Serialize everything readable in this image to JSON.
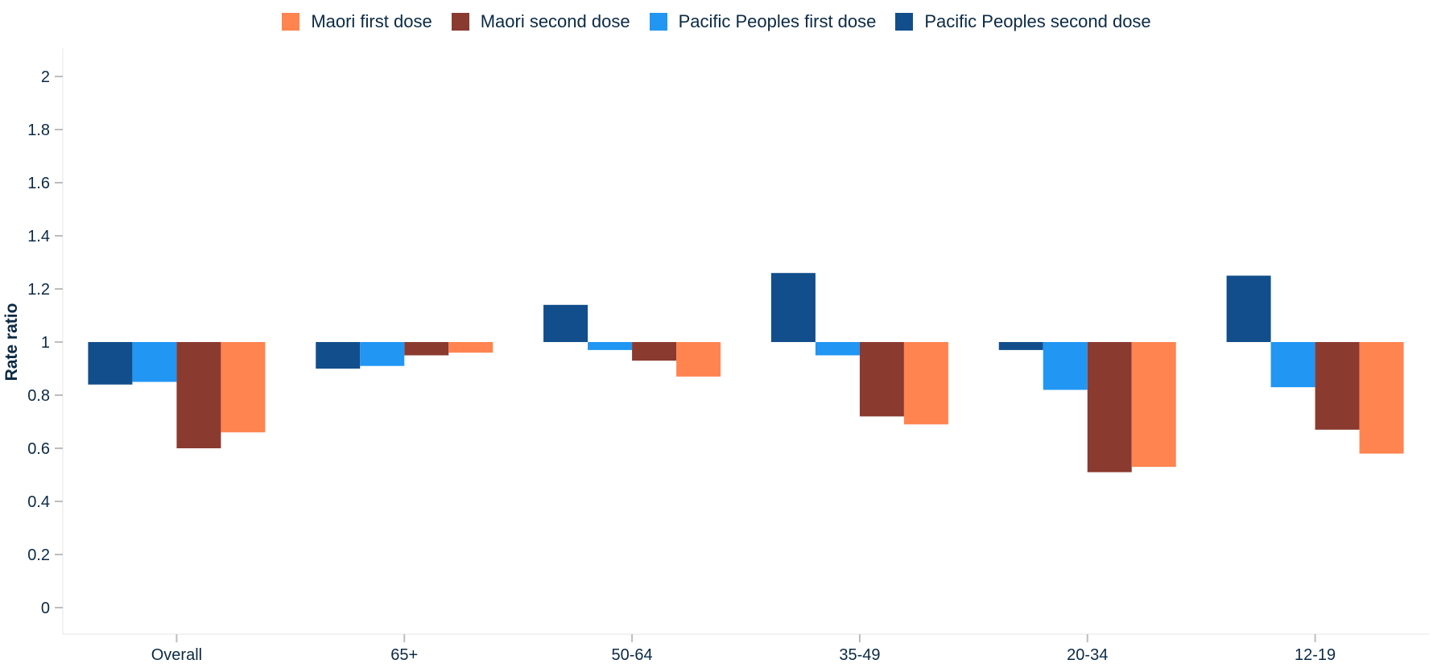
{
  "chart_data": {
    "type": "bar",
    "title": "",
    "xlabel": "",
    "ylabel": "Rate ratio",
    "ylim": [
      0,
      2
    ],
    "yticks": [
      0,
      0.2,
      0.4,
      0.6,
      0.8,
      1,
      1.2,
      1.4,
      1.6,
      1.8,
      2
    ],
    "baseline": 1,
    "categories": [
      "Overall",
      "65+",
      "50-64",
      "35-49",
      "20-34",
      "12-19"
    ],
    "series": [
      {
        "name": "Pacific Peoples second dose",
        "color": "#124e8c",
        "values": [
          0.84,
          0.9,
          1.14,
          1.26,
          0.97,
          1.25
        ]
      },
      {
        "name": "Pacific Peoples first dose",
        "color": "#2196f3",
        "values": [
          0.85,
          0.91,
          0.97,
          0.95,
          0.82,
          0.83
        ]
      },
      {
        "name": "Maori second dose",
        "color": "#8b3a30",
        "values": [
          0.6,
          0.95,
          0.93,
          0.72,
          0.51,
          0.67
        ]
      },
      {
        "name": "Maori first dose",
        "color": "#ff8450",
        "values": [
          0.66,
          0.96,
          0.87,
          0.69,
          0.53,
          0.58
        ]
      }
    ],
    "legend": {
      "placement": "top-center",
      "order": [
        "Maori first dose",
        "Maori second dose",
        "Pacific Peoples first dose",
        "Pacific Peoples second dose"
      ]
    }
  }
}
